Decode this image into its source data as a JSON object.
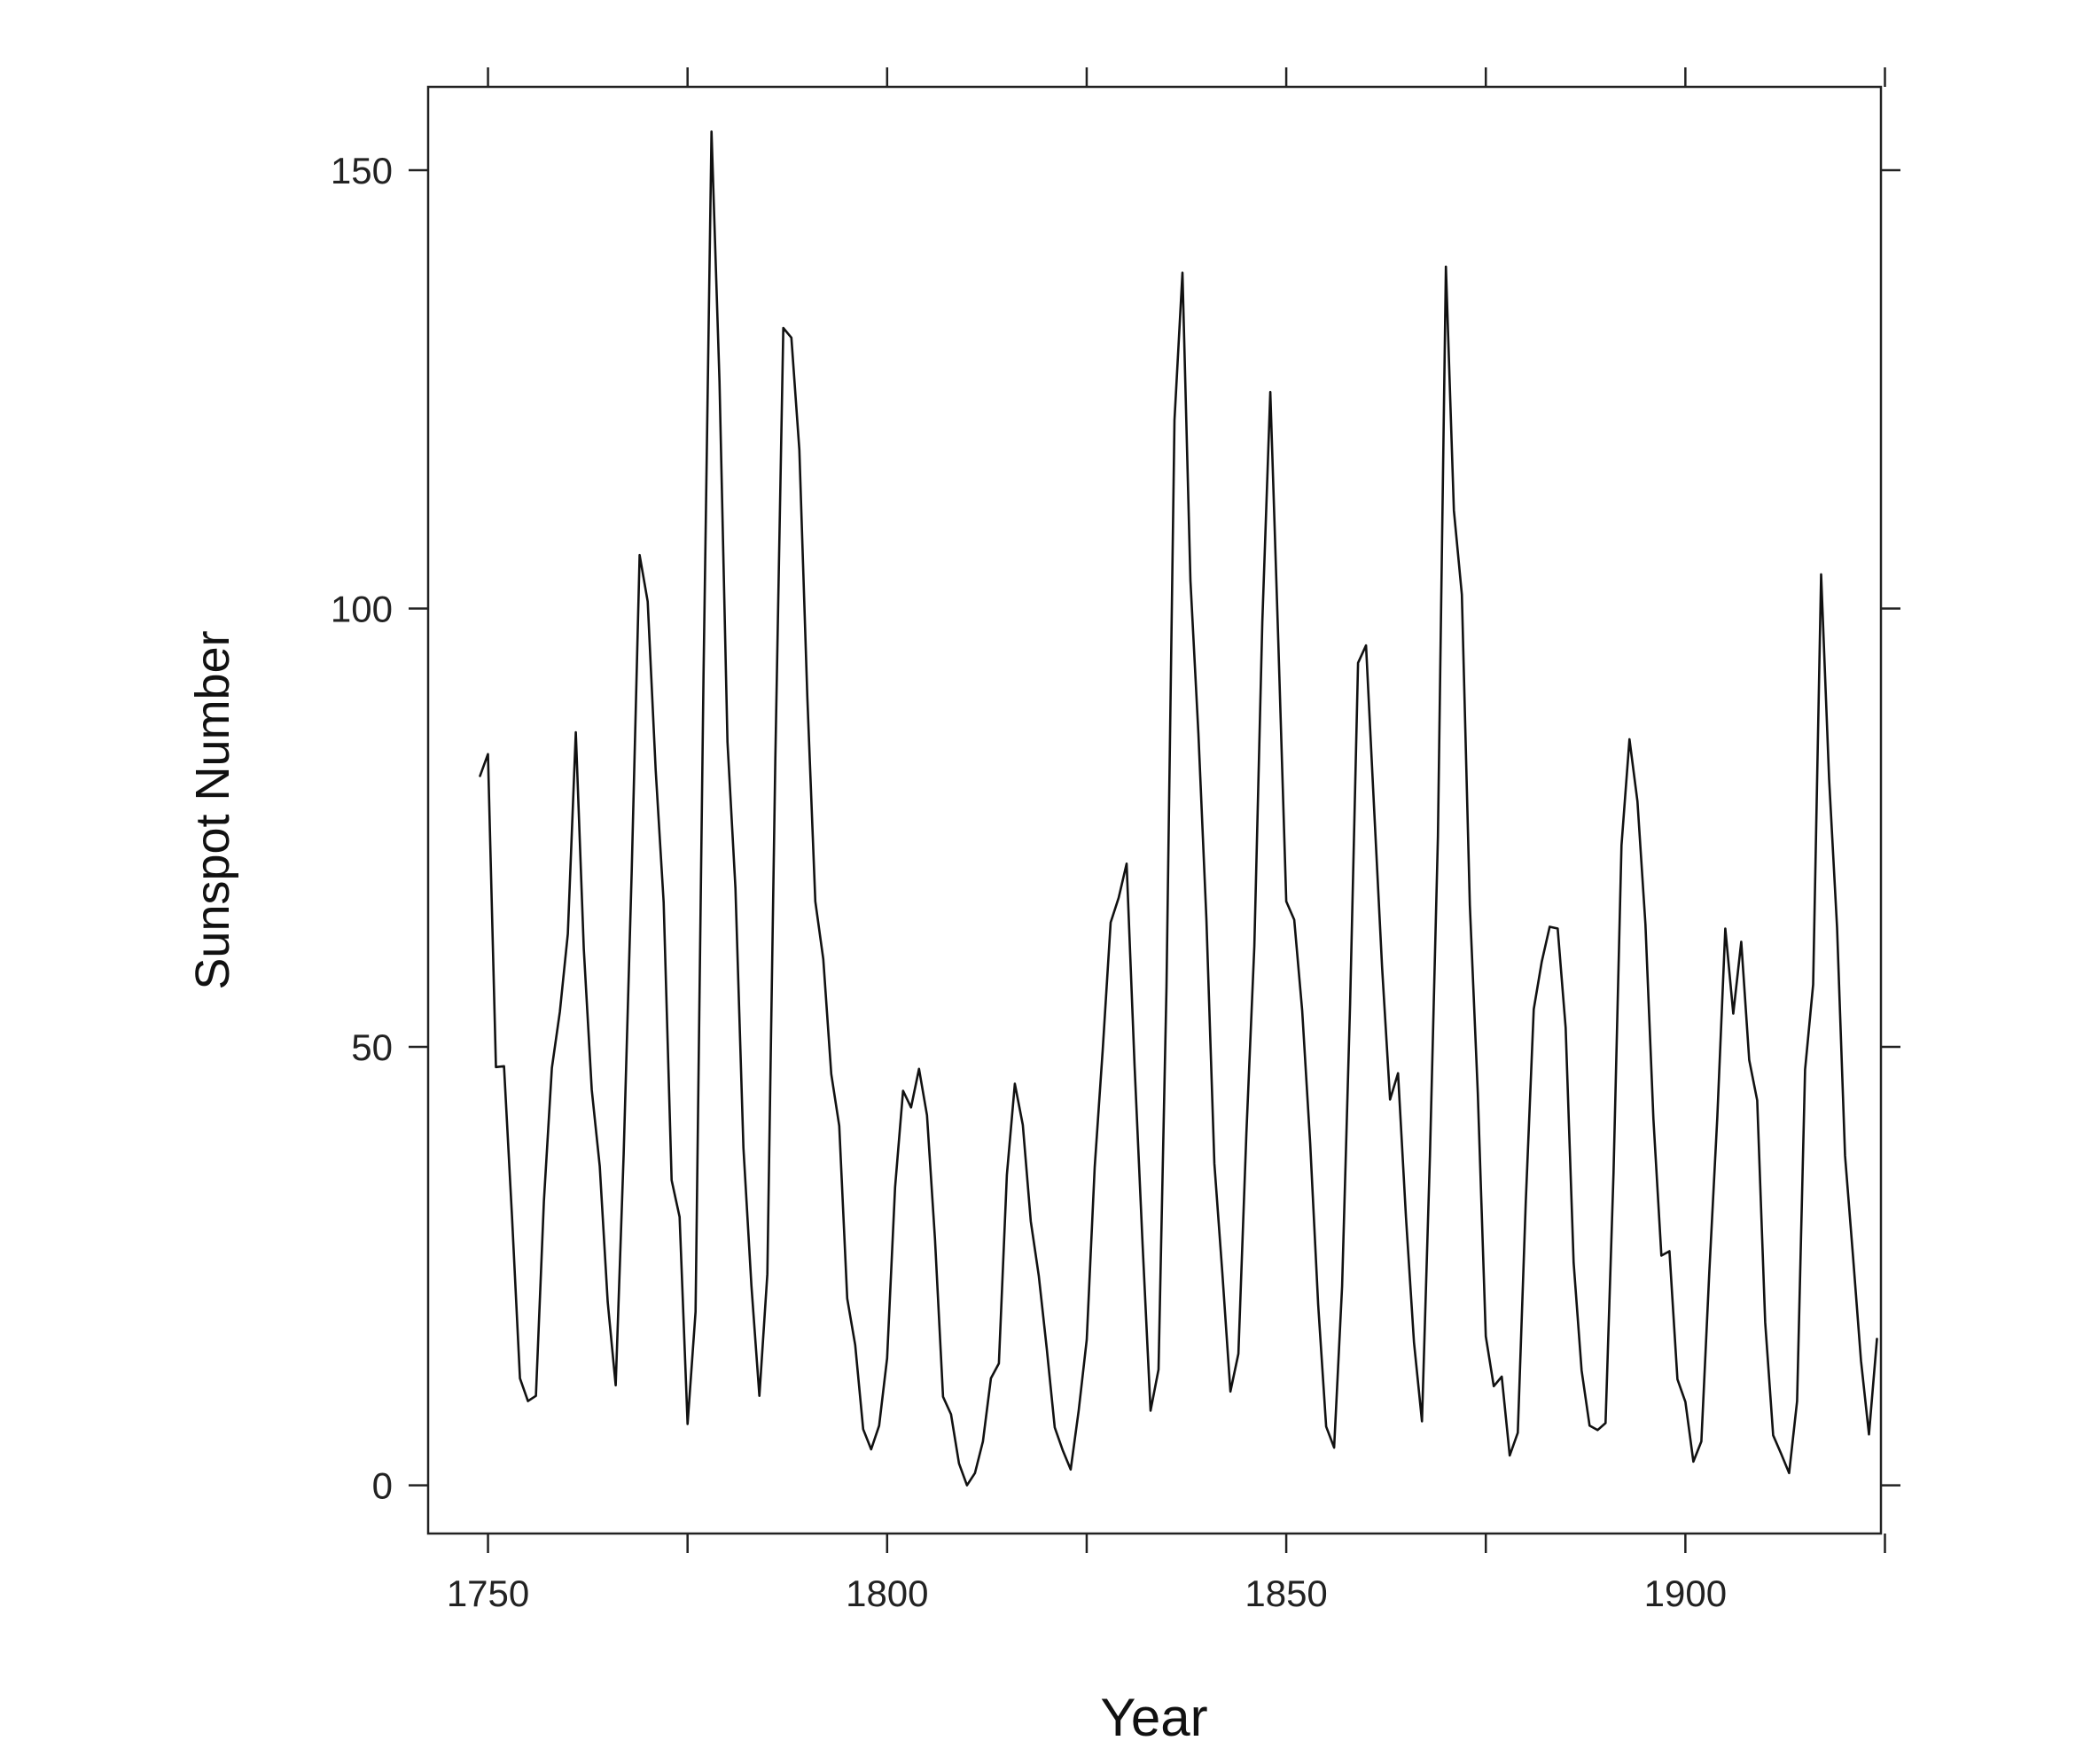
{
  "chart_data": {
    "type": "line",
    "xlabel": "Year",
    "ylabel": "Sunspot Number",
    "xlim": [
      1742.5,
      1924.5
    ],
    "ylim": [
      -5.5,
      159.5
    ],
    "x_ticks": [
      1750,
      1775,
      1800,
      1825,
      1850,
      1875,
      1900,
      1925
    ],
    "x_tick_labels": [
      "1750",
      "",
      "1800",
      "",
      "1850",
      "",
      "1900",
      ""
    ],
    "y_ticks": [
      0,
      50,
      100,
      150
    ],
    "y_tick_labels": [
      "0",
      "50",
      "100",
      "150"
    ],
    "grid": false,
    "legend": "none",
    "line_color": "#111111",
    "series": [
      {
        "x": [
          1749,
          1750,
          1751,
          1752,
          1753,
          1754,
          1755,
          1756,
          1757,
          1758,
          1759,
          1760,
          1761,
          1762,
          1763,
          1764,
          1765,
          1766,
          1767,
          1768,
          1769,
          1770,
          1771,
          1772,
          1773,
          1774,
          1775,
          1776,
          1777,
          1778,
          1779,
          1780,
          1781,
          1782,
          1783,
          1784,
          1785,
          1786,
          1787,
          1788,
          1789,
          1790,
          1791,
          1792,
          1793,
          1794,
          1795,
          1796,
          1797,
          1798,
          1799,
          1800,
          1801,
          1802,
          1803,
          1804,
          1805,
          1806,
          1807,
          1808,
          1809,
          1810,
          1811,
          1812,
          1813,
          1814,
          1815,
          1816,
          1817,
          1818,
          1819,
          1820,
          1821,
          1822,
          1823,
          1824,
          1825,
          1826,
          1827,
          1828,
          1829,
          1830,
          1831,
          1832,
          1833,
          1834,
          1835,
          1836,
          1837,
          1838,
          1839,
          1840,
          1841,
          1842,
          1843,
          1844,
          1845,
          1846,
          1847,
          1848,
          1849,
          1850,
          1851,
          1852,
          1853,
          1854,
          1855,
          1856,
          1857,
          1858,
          1859,
          1860,
          1861,
          1862,
          1863,
          1864,
          1865,
          1866,
          1867,
          1868,
          1869,
          1870,
          1871,
          1872,
          1873,
          1874,
          1875,
          1876,
          1877,
          1878,
          1879,
          1880,
          1881,
          1882,
          1883,
          1884,
          1885,
          1886,
          1887,
          1888,
          1889,
          1890,
          1891,
          1892,
          1893,
          1894,
          1895,
          1896,
          1897,
          1898,
          1899,
          1900,
          1901,
          1902,
          1903,
          1904,
          1905,
          1906,
          1907,
          1908,
          1909,
          1910,
          1911,
          1912,
          1913,
          1914,
          1915,
          1916,
          1917,
          1918,
          1919,
          1920,
          1921,
          1922,
          1923,
          1924
        ],
        "y": [
          80.9,
          83.4,
          47.7,
          47.8,
          30.7,
          12.2,
          9.6,
          10.2,
          32.4,
          47.6,
          54.0,
          62.9,
          85.9,
          61.2,
          45.1,
          36.4,
          20.9,
          11.4,
          37.8,
          69.8,
          106.1,
          100.8,
          81.6,
          66.5,
          34.8,
          30.6,
          7.0,
          19.8,
          92.5,
          154.4,
          125.9,
          84.8,
          68.1,
          38.5,
          22.8,
          10.2,
          24.1,
          82.9,
          132.0,
          130.9,
          118.1,
          89.9,
          66.6,
          60.0,
          46.9,
          41.0,
          21.3,
          16.0,
          6.4,
          4.1,
          6.8,
          14.5,
          34.0,
          45.0,
          43.1,
          47.5,
          42.2,
          28.1,
          10.1,
          8.1,
          2.5,
          0.0,
          1.4,
          5.0,
          12.2,
          13.9,
          35.4,
          45.8,
          41.1,
          30.1,
          23.9,
          15.6,
          6.6,
          4.0,
          1.8,
          8.5,
          16.6,
          36.3,
          49.6,
          64.2,
          67.0,
          70.9,
          47.8,
          27.5,
          8.5,
          13.2,
          56.9,
          121.5,
          138.3,
          103.2,
          85.7,
          64.6,
          36.7,
          24.2,
          10.7,
          15.0,
          40.1,
          61.5,
          98.5,
          124.7,
          96.3,
          66.6,
          64.5,
          54.1,
          39.0,
          20.6,
          6.7,
          4.3,
          22.7,
          54.8,
          93.8,
          95.8,
          77.2,
          59.1,
          44.0,
          47.0,
          30.5,
          16.3,
          7.3,
          37.6,
          74.0,
          139.0,
          111.2,
          101.6,
          66.2,
          44.7,
          17.0,
          11.3,
          12.4,
          3.4,
          6.0,
          32.3,
          54.3,
          59.7,
          63.7,
          63.5,
          52.2,
          25.4,
          13.1,
          6.8,
          6.3,
          7.1,
          35.6,
          73.0,
          85.1,
          78.0,
          64.0,
          41.8,
          26.2,
          26.7,
          12.1,
          9.5,
          2.7,
          5.0,
          24.4,
          42.0,
          63.5,
          53.8,
          62.0,
          48.5,
          43.9,
          18.6,
          5.7,
          3.6,
          1.4,
          9.6,
          47.4,
          57.1,
          103.9,
          80.6,
          63.6,
          37.6,
          26.1,
          14.2,
          5.8,
          16.7
        ]
      }
    ]
  }
}
